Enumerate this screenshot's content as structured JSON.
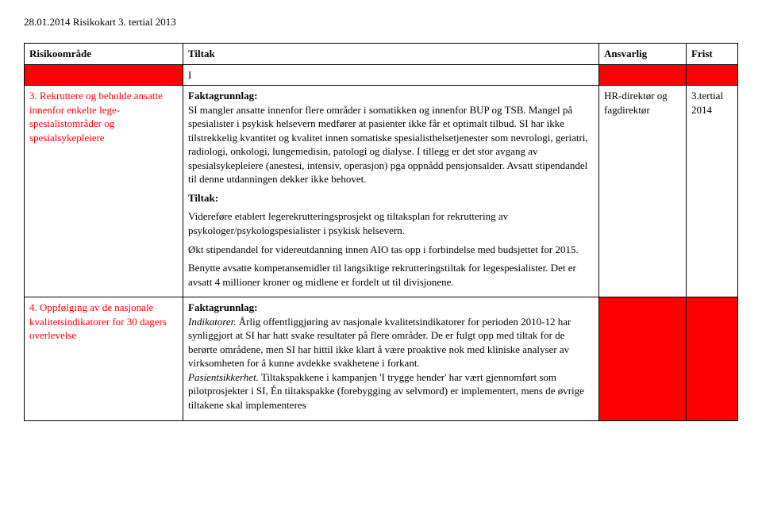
{
  "header": "28.01.2014 Risikokart 3. tertial 2013",
  "columns": {
    "risk": "Risikoområde",
    "tiltak": "Tiltak",
    "ansvarlig": "Ansvarlig",
    "frist": "Frist"
  },
  "marker": "I",
  "row3": {
    "num": "3.",
    "title": "Rekruttere og beholde ansatte innenfor enkelte lege-spesialistområder og spesialsykepleiere",
    "fakta_label": "Faktagrunnlag:",
    "fakta_text": "SI mangler ansatte innenfor flere områder i somatikken og innenfor BUP og TSB. Mangel på spesialister i psykisk helsevern medfører at pasienter ikke får et optimalt tilbud. SI har ikke tilstrekkelig kvantitet og kvalitet innen somatiske spesialisthelsetjenester som nevrologi, geriatri, radiologi, onkologi, lungemedisin, patologi og dialyse. I tillegg er det stor avgang av spesialsykepleiere (anestesi, intensiv, operasjon) pga oppnådd pensjonsalder. Avsatt stipendandel til denne utdanningen dekker ikke behovet.",
    "tiltak_label": "Tiltak:",
    "tiltak_p1": "Videreføre etablert legerekrutteringsprosjekt og tiltaksplan for rekruttering av psykologer/psykologspesialister i psykisk helsevern.",
    "tiltak_p2": "Økt stipendandel for videreutdanning innen AIO tas opp i forbindelse med budsjettet for 2015.",
    "tiltak_p3": "Benytte avsatte kompetansemidler til langsiktige rekrutteringstiltak for legespesialister. Det er avsatt 4 millioner kroner og midlene er fordelt ut til divisjonene.",
    "ansvarlig": "HR-direktør og fagdirektør",
    "frist": "3.tertial 2014"
  },
  "row4": {
    "num": "4.",
    "title": "Oppfølging av de nasjonale kvalitetsindikatorer for 30 dagers overlevelse",
    "fakta_label": "Faktagrunnlag:",
    "indik_label": "Indikatorer.",
    "indik_text": " Årlig offentliggjøring av nasjonale kvalitetsindikatorer for perioden 2010-12 har synliggjort at SI har hatt svake resultater på flere områder. De er fulgt opp med tiltak for de berørte områdene, men SI har hittil ikke klart å være proaktive nok med kliniske analyser av virksomheten for å kunne avdekke svakhetene i forkant.",
    "pasient_label": "Pasientsikkerhet.",
    "pasient_text": " Tiltakspakkene i kampanjen 'I trygge hender' har vært gjennomført som pilotprosjekter i SI, Én tiltakspakke (forebygging av selvmord) er implementert, mens de øvrige tiltakene skal implementeres"
  }
}
